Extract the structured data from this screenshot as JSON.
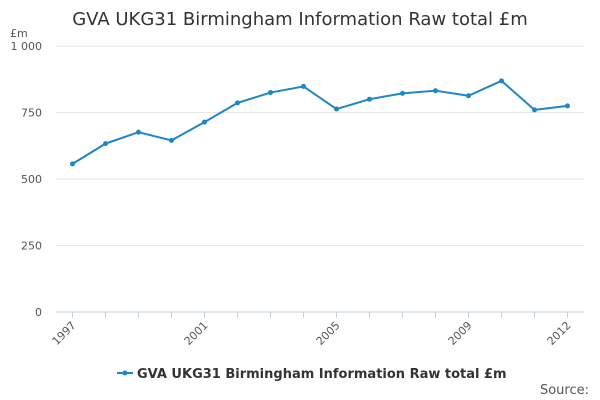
{
  "title": "GVA UKG31 Birmingham Information Raw total £m",
  "source_label": "Source:",
  "colors": {
    "series": "#1f86c4",
    "grid": "#e6e6e6",
    "text": "#333333"
  },
  "chart_data": {
    "type": "line",
    "title": "GVA UKG31 Birmingham Information Raw total £m",
    "ylabel": "£m",
    "xlabel": "",
    "ylim": [
      0,
      1000
    ],
    "yticks": [
      0,
      250,
      500,
      750,
      1000
    ],
    "ytick_labels": [
      "0",
      "250",
      "500",
      "750",
      "1 000"
    ],
    "xtick_labels": [
      "1997",
      "2001",
      "2005",
      "2009",
      "2012"
    ],
    "x": [
      1997,
      1998,
      1999,
      2000,
      2001,
      2002,
      2003,
      2004,
      2005,
      2006,
      2007,
      2008,
      2009,
      2010,
      2011,
      2012
    ],
    "series": [
      {
        "name": "GVA UKG31 Birmingham Information Raw total £m",
        "values": [
          557,
          633,
          676,
          645,
          714,
          786,
          825,
          848,
          763,
          800,
          822,
          832,
          813,
          869,
          760,
          775
        ]
      }
    ],
    "grid": true,
    "legend": "bottom-center"
  }
}
